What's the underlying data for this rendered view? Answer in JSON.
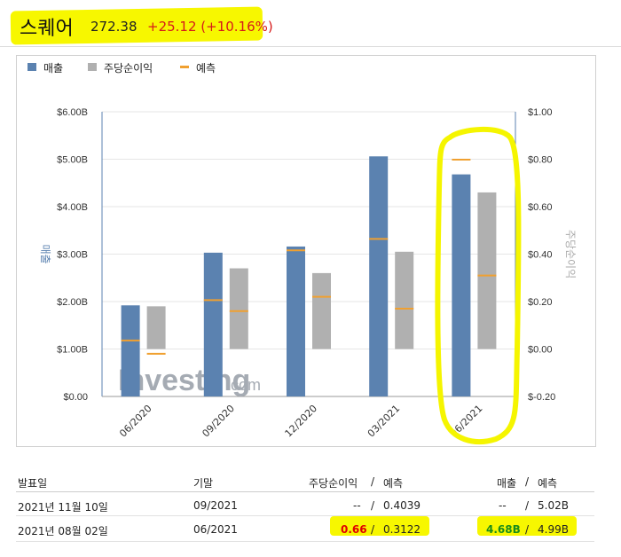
{
  "header": {
    "title": "스퀘어",
    "price": "272.38",
    "change": "+25.12 (+10.16%)",
    "highlight_color": "#f7f700"
  },
  "legend": [
    {
      "label": "매출",
      "color": "#5b82b0"
    },
    {
      "label": "주당순이익",
      "color": "#b0b0b0"
    },
    {
      "label": "예측",
      "color": "#f0a030"
    }
  ],
  "chart_data": {
    "type": "bar",
    "categories": [
      "06/2020",
      "09/2020",
      "12/2020",
      "03/2021",
      "06/2021"
    ],
    "series": [
      {
        "name": "매출",
        "axis": "left",
        "unit": "B",
        "values": [
          1.92,
          3.03,
          3.16,
          5.06,
          4.68
        ]
      },
      {
        "name": "주당순이익",
        "axis": "right",
        "values": [
          0.18,
          0.34,
          0.32,
          0.41,
          0.66
        ],
        "baseline": 0.0
      },
      {
        "name": "예측",
        "kind": "revenue",
        "axis": "left",
        "values": [
          1.18,
          2.03,
          3.08,
          3.32,
          4.99
        ]
      },
      {
        "name": "예측",
        "kind": "eps",
        "axis": "right",
        "values": [
          -0.02,
          0.16,
          0.22,
          0.17,
          0.31
        ]
      }
    ],
    "left_axis": {
      "label": "매출",
      "ticks": [
        "$0.00",
        "$1.00B",
        "$2.00B",
        "$3.00B",
        "$4.00B",
        "$5.00B",
        "$6.00B"
      ],
      "range": [
        0,
        6
      ]
    },
    "right_axis": {
      "label": "주당순이익",
      "ticks": [
        "$-0.20",
        "$0.00",
        "$0.20",
        "$0.40",
        "$0.60",
        "$0.80",
        "$1.00"
      ],
      "range": [
        -0.2,
        1.0
      ]
    },
    "watermark": {
      "brand": "Investing",
      "suffix": ".com"
    }
  },
  "table": {
    "headers": {
      "date": "발표일",
      "period": "기말",
      "eps": "주당순이익",
      "eps_forecast": "예측",
      "revenue": "매출",
      "revenue_forecast": "예측",
      "slash": "/"
    },
    "rows": [
      {
        "date": "2021년 11월 10일",
        "period": "09/2021",
        "eps": "--",
        "eps_forecast": "0.4039",
        "revenue": "--",
        "revenue_forecast": "5.02B"
      },
      {
        "date": "2021년 08월 02일",
        "period": "06/2021",
        "eps": "0.66",
        "eps_forecast": "0.3122",
        "revenue": "4.68B",
        "revenue_forecast": "4.99B"
      }
    ]
  }
}
